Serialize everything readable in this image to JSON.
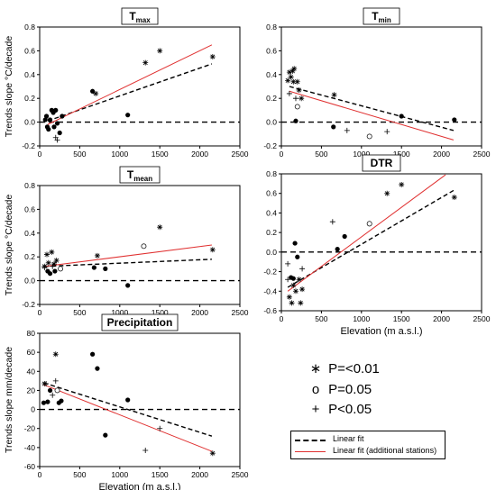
{
  "colors": {
    "linear_fit": "#000000",
    "additional_fit": "#e03030",
    "zero_line": "#000000",
    "points": "#000000"
  },
  "legend": {
    "p001": "P=<0.01",
    "p005": "P=0.05",
    "plt005": "P<0.05",
    "linear_fit": "Linear fit",
    "additional_fit": "Linear fit (additional stations)",
    "marker_p001": "∗",
    "marker_p005": "o",
    "marker_plt005": "+"
  },
  "chart_data": [
    {
      "id": "tmax",
      "type": "scatter",
      "title_main": "T",
      "title_sub": "max",
      "xlabel": "",
      "ylabel": "Trends slope °C/decade",
      "xlim": [
        0,
        2500
      ],
      "ylim": [
        -0.2,
        0.8
      ],
      "xticks": [
        0,
        500,
        1000,
        1500,
        2000,
        2500
      ],
      "yticks": [
        -0.2,
        0.0,
        0.2,
        0.4,
        0.6,
        0.8
      ],
      "ytick_labels": [
        "-0.2",
        "0.0",
        "0.2",
        "0.4",
        "0.6",
        "0.8"
      ],
      "points": [
        {
          "x": 70,
          "y": 0.02,
          "m": "dot"
        },
        {
          "x": 85,
          "y": 0.05,
          "m": "dot"
        },
        {
          "x": 95,
          "y": -0.04,
          "m": "dot"
        },
        {
          "x": 110,
          "y": -0.06,
          "m": "dot"
        },
        {
          "x": 130,
          "y": 0.02,
          "m": "dot"
        },
        {
          "x": 150,
          "y": 0.1,
          "m": "dot"
        },
        {
          "x": 170,
          "y": 0.08,
          "m": "dot"
        },
        {
          "x": 180,
          "y": -0.04,
          "m": "dot"
        },
        {
          "x": 200,
          "y": 0.1,
          "m": "dot"
        },
        {
          "x": 220,
          "y": -0.01,
          "m": "dot"
        },
        {
          "x": 250,
          "y": -0.09,
          "m": "dot"
        },
        {
          "x": 280,
          "y": 0.05,
          "m": "dot"
        },
        {
          "x": 660,
          "y": 0.26,
          "m": "dot"
        },
        {
          "x": 1100,
          "y": 0.06,
          "m": "dot"
        },
        {
          "x": 200,
          "y": -0.13,
          "m": "plus"
        },
        {
          "x": 220,
          "y": -0.15,
          "m": "plus"
        },
        {
          "x": 700,
          "y": 0.24,
          "m": "star"
        },
        {
          "x": 1320,
          "y": 0.5,
          "m": "star"
        },
        {
          "x": 1500,
          "y": 0.6,
          "m": "star"
        },
        {
          "x": 2160,
          "y": 0.55,
          "m": "star"
        }
      ],
      "fit": {
        "x": [
          100,
          2150
        ],
        "y": [
          0.01,
          0.49
        ]
      },
      "fit_additional": {
        "x": [
          100,
          2150
        ],
        "y": [
          -0.02,
          0.65
        ]
      }
    },
    {
      "id": "tmin",
      "type": "scatter",
      "title_main": "T",
      "title_sub": "min",
      "xlabel": "",
      "ylabel": "",
      "xlim": [
        0,
        2500
      ],
      "ylim": [
        -0.2,
        0.8
      ],
      "xticks": [
        0,
        500,
        1000,
        1500,
        2000,
        2500
      ],
      "yticks": [
        -0.2,
        0.0,
        0.2,
        0.4,
        0.6,
        0.8
      ],
      "ytick_labels": [
        "-0.2",
        "0.0",
        "0.2",
        "0.4",
        "0.6",
        "0.8"
      ],
      "points": [
        {
          "x": 80,
          "y": 0.35,
          "m": "star"
        },
        {
          "x": 100,
          "y": 0.42,
          "m": "star"
        },
        {
          "x": 120,
          "y": 0.38,
          "m": "star"
        },
        {
          "x": 140,
          "y": 0.43,
          "m": "star"
        },
        {
          "x": 160,
          "y": 0.45,
          "m": "star"
        },
        {
          "x": 150,
          "y": 0.34,
          "m": "star"
        },
        {
          "x": 200,
          "y": 0.34,
          "m": "star"
        },
        {
          "x": 220,
          "y": 0.27,
          "m": "star"
        },
        {
          "x": 250,
          "y": 0.2,
          "m": "star"
        },
        {
          "x": 660,
          "y": 0.23,
          "m": "star"
        },
        {
          "x": 180,
          "y": 0.2,
          "m": "plus"
        },
        {
          "x": 100,
          "y": 0.24,
          "m": "plus"
        },
        {
          "x": 820,
          "y": -0.07,
          "m": "plus"
        },
        {
          "x": 1320,
          "y": -0.08,
          "m": "plus"
        },
        {
          "x": 200,
          "y": 0.13,
          "m": "circle"
        },
        {
          "x": 1100,
          "y": -0.12,
          "m": "circle"
        },
        {
          "x": 180,
          "y": 0.01,
          "m": "dot"
        },
        {
          "x": 650,
          "y": -0.04,
          "m": "dot"
        },
        {
          "x": 1500,
          "y": 0.05,
          "m": "dot"
        },
        {
          "x": 2160,
          "y": 0.02,
          "m": "dot"
        }
      ],
      "fit": {
        "x": [
          100,
          2150
        ],
        "y": [
          0.3,
          -0.07
        ]
      },
      "fit_additional": {
        "x": [
          100,
          2150
        ],
        "y": [
          0.26,
          -0.15
        ]
      }
    },
    {
      "id": "tmean",
      "type": "scatter",
      "title_main": "T",
      "title_sub": "mean",
      "xlabel": "",
      "ylabel": "Trends slope °C/decade",
      "xlim": [
        0,
        2500
      ],
      "ylim": [
        -0.2,
        0.8
      ],
      "xticks": [
        0,
        500,
        1000,
        1500,
        2000,
        2500
      ],
      "yticks": [
        -0.2,
        0.0,
        0.2,
        0.4,
        0.6,
        0.8
      ],
      "ytick_labels": [
        "-0.2",
        "0.0",
        "0.2",
        "0.4",
        "0.6",
        "0.8"
      ],
      "points": [
        {
          "x": 60,
          "y": 0.12,
          "m": "star"
        },
        {
          "x": 90,
          "y": 0.22,
          "m": "star"
        },
        {
          "x": 110,
          "y": 0.15,
          "m": "star"
        },
        {
          "x": 150,
          "y": 0.24,
          "m": "star"
        },
        {
          "x": 180,
          "y": 0.14,
          "m": "star"
        },
        {
          "x": 210,
          "y": 0.17,
          "m": "star"
        },
        {
          "x": 720,
          "y": 0.21,
          "m": "star"
        },
        {
          "x": 1500,
          "y": 0.45,
          "m": "star"
        },
        {
          "x": 2160,
          "y": 0.26,
          "m": "star"
        },
        {
          "x": 60,
          "y": 0.11,
          "m": "plus"
        },
        {
          "x": 160,
          "y": 0.12,
          "m": "plus"
        },
        {
          "x": 260,
          "y": 0.1,
          "m": "circle"
        },
        {
          "x": 1300,
          "y": 0.29,
          "m": "circle"
        },
        {
          "x": 100,
          "y": 0.08,
          "m": "dot"
        },
        {
          "x": 130,
          "y": 0.06,
          "m": "dot"
        },
        {
          "x": 190,
          "y": 0.08,
          "m": "dot"
        },
        {
          "x": 680,
          "y": 0.11,
          "m": "dot"
        },
        {
          "x": 820,
          "y": 0.1,
          "m": "dot"
        },
        {
          "x": 1100,
          "y": -0.04,
          "m": "dot"
        }
      ],
      "fit": {
        "x": [
          60,
          2150
        ],
        "y": [
          0.12,
          0.18
        ]
      },
      "fit_additional": {
        "x": [
          60,
          2150
        ],
        "y": [
          0.12,
          0.3
        ]
      }
    },
    {
      "id": "dtr",
      "type": "scatter",
      "title_main": "DTR",
      "title_sub": "",
      "xlabel": "Elevation (m a.s.l.)",
      "ylabel": "",
      "xlim": [
        0,
        2500
      ],
      "ylim": [
        -0.6,
        0.8
      ],
      "xticks": [
        0,
        500,
        1000,
        1500,
        2000,
        2500
      ],
      "yticks": [
        -0.6,
        -0.4,
        -0.2,
        0.0,
        0.2,
        0.4,
        0.6,
        0.8
      ],
      "ytick_labels": [
        "-0.6",
        "-0.4",
        "-0.2",
        "0.0",
        "0.2",
        "0.4",
        "0.6",
        "0.8"
      ],
      "points": [
        {
          "x": 80,
          "y": -0.28,
          "m": "plus"
        },
        {
          "x": 80,
          "y": -0.12,
          "m": "plus"
        },
        {
          "x": 260,
          "y": -0.17,
          "m": "plus"
        },
        {
          "x": 640,
          "y": 0.31,
          "m": "plus"
        },
        {
          "x": 100,
          "y": -0.46,
          "m": "star"
        },
        {
          "x": 130,
          "y": -0.52,
          "m": "star"
        },
        {
          "x": 150,
          "y": -0.34,
          "m": "star"
        },
        {
          "x": 180,
          "y": -0.4,
          "m": "star"
        },
        {
          "x": 220,
          "y": -0.28,
          "m": "star"
        },
        {
          "x": 240,
          "y": -0.52,
          "m": "star"
        },
        {
          "x": 260,
          "y": -0.38,
          "m": "star"
        },
        {
          "x": 1320,
          "y": 0.6,
          "m": "star"
        },
        {
          "x": 1500,
          "y": 0.69,
          "m": "star"
        },
        {
          "x": 2160,
          "y": 0.56,
          "m": "star"
        },
        {
          "x": 1100,
          "y": 0.29,
          "m": "circle"
        },
        {
          "x": 120,
          "y": -0.26,
          "m": "dot"
        },
        {
          "x": 150,
          "y": -0.27,
          "m": "dot"
        },
        {
          "x": 170,
          "y": 0.09,
          "m": "dot"
        },
        {
          "x": 200,
          "y": -0.05,
          "m": "dot"
        },
        {
          "x": 700,
          "y": 0.03,
          "m": "dot"
        },
        {
          "x": 790,
          "y": 0.16,
          "m": "dot"
        }
      ],
      "fit": {
        "x": [
          80,
          2150
        ],
        "y": [
          -0.36,
          0.63
        ]
      },
      "fit_additional": {
        "x": [
          80,
          2050
        ],
        "y": [
          -0.4,
          0.79
        ]
      }
    },
    {
      "id": "precipitation",
      "type": "scatter",
      "title_main": "Precipitation",
      "title_sub": "",
      "xlabel": "Elevation (m a.s.l.)",
      "ylabel": "Trends slope mm/decade",
      "xlim": [
        0,
        2500
      ],
      "ylim": [
        -60,
        80
      ],
      "xticks": [
        0,
        500,
        1000,
        1500,
        2000,
        2500
      ],
      "yticks": [
        -60,
        -40,
        -20,
        0,
        20,
        40,
        60,
        80
      ],
      "ytick_labels": [
        "-60",
        "-40",
        "-20",
        "0",
        "20",
        "40",
        "60",
        "80"
      ],
      "points": [
        {
          "x": 60,
          "y": 27,
          "m": "star"
        },
        {
          "x": 200,
          "y": 58,
          "m": "star"
        },
        {
          "x": 2160,
          "y": -46,
          "m": "star"
        },
        {
          "x": 80,
          "y": 27,
          "m": "plus"
        },
        {
          "x": 200,
          "y": 30,
          "m": "plus"
        },
        {
          "x": 160,
          "y": 15,
          "m": "plus"
        },
        {
          "x": 1320,
          "y": -43,
          "m": "plus"
        },
        {
          "x": 1500,
          "y": -20,
          "m": "plus"
        },
        {
          "x": 220,
          "y": 20,
          "m": "circle"
        },
        {
          "x": 50,
          "y": 7,
          "m": "dot"
        },
        {
          "x": 100,
          "y": 8,
          "m": "dot"
        },
        {
          "x": 130,
          "y": 20,
          "m": "dot"
        },
        {
          "x": 240,
          "y": 7,
          "m": "dot"
        },
        {
          "x": 270,
          "y": 9,
          "m": "dot"
        },
        {
          "x": 660,
          "y": 58,
          "m": "dot"
        },
        {
          "x": 720,
          "y": 43,
          "m": "dot"
        },
        {
          "x": 820,
          "y": -27,
          "m": "dot"
        },
        {
          "x": 1100,
          "y": 10,
          "m": "dot"
        }
      ],
      "fit": {
        "x": [
          50,
          2150
        ],
        "y": [
          28,
          -28
        ]
      },
      "fit_additional": {
        "x": [
          50,
          2150
        ],
        "y": [
          26,
          -44
        ]
      }
    }
  ]
}
